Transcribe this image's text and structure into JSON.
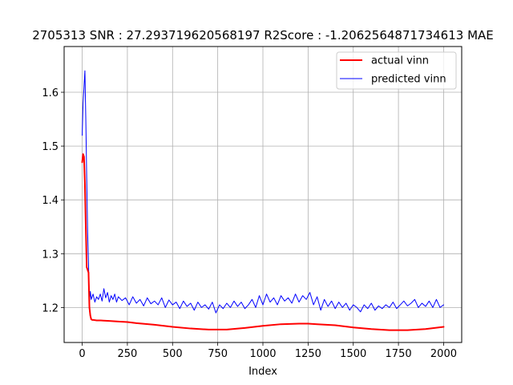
{
  "chart_data": {
    "type": "line",
    "title": "2705313  SNR : 27.293719620568197 R2Score : -1.2062564871734613 MAE",
    "xlabel": "Index",
    "ylabel": "",
    "xlim": [
      -100,
      2100
    ],
    "ylim": [
      1.135,
      1.685
    ],
    "xticks": [
      0,
      250,
      500,
      750,
      1000,
      1250,
      1500,
      1750,
      2000
    ],
    "yticks": [
      1.2,
      1.3,
      1.4,
      1.5,
      1.6
    ],
    "xtick_labels": [
      "0",
      "250",
      "500",
      "750",
      "1000",
      "1250",
      "1500",
      "1750",
      "2000"
    ],
    "ytick_labels": [
      "1.2",
      "1.3",
      "1.4",
      "1.5",
      "1.6"
    ],
    "grid": true,
    "legend_position": "top-right",
    "series": [
      {
        "name": "actual vinn",
        "color": "#ff0000",
        "line_width": 2,
        "x": [
          0,
          5,
          10,
          15,
          20,
          25,
          30,
          35,
          40,
          45,
          50,
          55,
          60,
          80,
          100,
          150,
          200,
          250,
          300,
          400,
          500,
          600,
          700,
          750,
          800,
          900,
          1000,
          1100,
          1200,
          1250,
          1300,
          1400,
          1500,
          1600,
          1700,
          1750,
          1800,
          1900,
          2000
        ],
        "y": [
          1.47,
          1.485,
          1.48,
          1.43,
          1.35,
          1.275,
          1.27,
          1.265,
          1.2,
          1.185,
          1.178,
          1.177,
          1.177,
          1.176,
          1.176,
          1.175,
          1.174,
          1.173,
          1.171,
          1.168,
          1.164,
          1.161,
          1.159,
          1.159,
          1.159,
          1.162,
          1.166,
          1.169,
          1.17,
          1.17,
          1.169,
          1.167,
          1.163,
          1.16,
          1.158,
          1.158,
          1.158,
          1.16,
          1.164
        ]
      },
      {
        "name": "predicted vinn",
        "color": "#0000ff",
        "line_width": 1,
        "x": [
          0,
          5,
          10,
          15,
          20,
          25,
          30,
          35,
          40,
          45,
          50,
          60,
          70,
          80,
          90,
          100,
          110,
          120,
          130,
          140,
          150,
          160,
          170,
          180,
          190,
          200,
          220,
          240,
          260,
          280,
          300,
          320,
          340,
          360,
          380,
          400,
          420,
          440,
          460,
          480,
          500,
          520,
          540,
          560,
          580,
          600,
          620,
          640,
          660,
          680,
          700,
          720,
          740,
          760,
          780,
          800,
          820,
          840,
          860,
          880,
          900,
          920,
          940,
          960,
          980,
          1000,
          1020,
          1040,
          1060,
          1080,
          1100,
          1120,
          1140,
          1160,
          1180,
          1200,
          1220,
          1240,
          1260,
          1280,
          1300,
          1320,
          1340,
          1360,
          1380,
          1400,
          1420,
          1440,
          1460,
          1480,
          1500,
          1520,
          1540,
          1560,
          1580,
          1600,
          1620,
          1640,
          1660,
          1680,
          1700,
          1720,
          1740,
          1760,
          1780,
          1800,
          1820,
          1840,
          1860,
          1880,
          1900,
          1920,
          1940,
          1960,
          1980,
          2000
        ],
        "y": [
          1.52,
          1.58,
          1.61,
          1.64,
          1.55,
          1.44,
          1.34,
          1.28,
          1.21,
          1.23,
          1.215,
          1.225,
          1.21,
          1.22,
          1.215,
          1.225,
          1.212,
          1.235,
          1.218,
          1.228,
          1.21,
          1.222,
          1.215,
          1.225,
          1.21,
          1.22,
          1.213,
          1.218,
          1.205,
          1.22,
          1.208,
          1.215,
          1.203,
          1.218,
          1.207,
          1.212,
          1.205,
          1.218,
          1.2,
          1.214,
          1.205,
          1.21,
          1.198,
          1.212,
          1.202,
          1.208,
          1.195,
          1.21,
          1.2,
          1.205,
          1.197,
          1.21,
          1.19,
          1.205,
          1.198,
          1.208,
          1.2,
          1.212,
          1.202,
          1.21,
          1.198,
          1.205,
          1.215,
          1.2,
          1.222,
          1.205,
          1.225,
          1.21,
          1.218,
          1.205,
          1.222,
          1.212,
          1.218,
          1.208,
          1.225,
          1.21,
          1.222,
          1.215,
          1.228,
          1.205,
          1.22,
          1.195,
          1.215,
          1.202,
          1.212,
          1.198,
          1.21,
          1.2,
          1.208,
          1.195,
          1.205,
          1.2,
          1.192,
          1.205,
          1.198,
          1.208,
          1.195,
          1.203,
          1.198,
          1.205,
          1.2,
          1.21,
          1.198,
          1.205,
          1.212,
          1.203,
          1.208,
          1.215,
          1.2,
          1.208,
          1.202,
          1.212,
          1.2,
          1.215,
          1.2,
          1.205
        ]
      }
    ]
  }
}
